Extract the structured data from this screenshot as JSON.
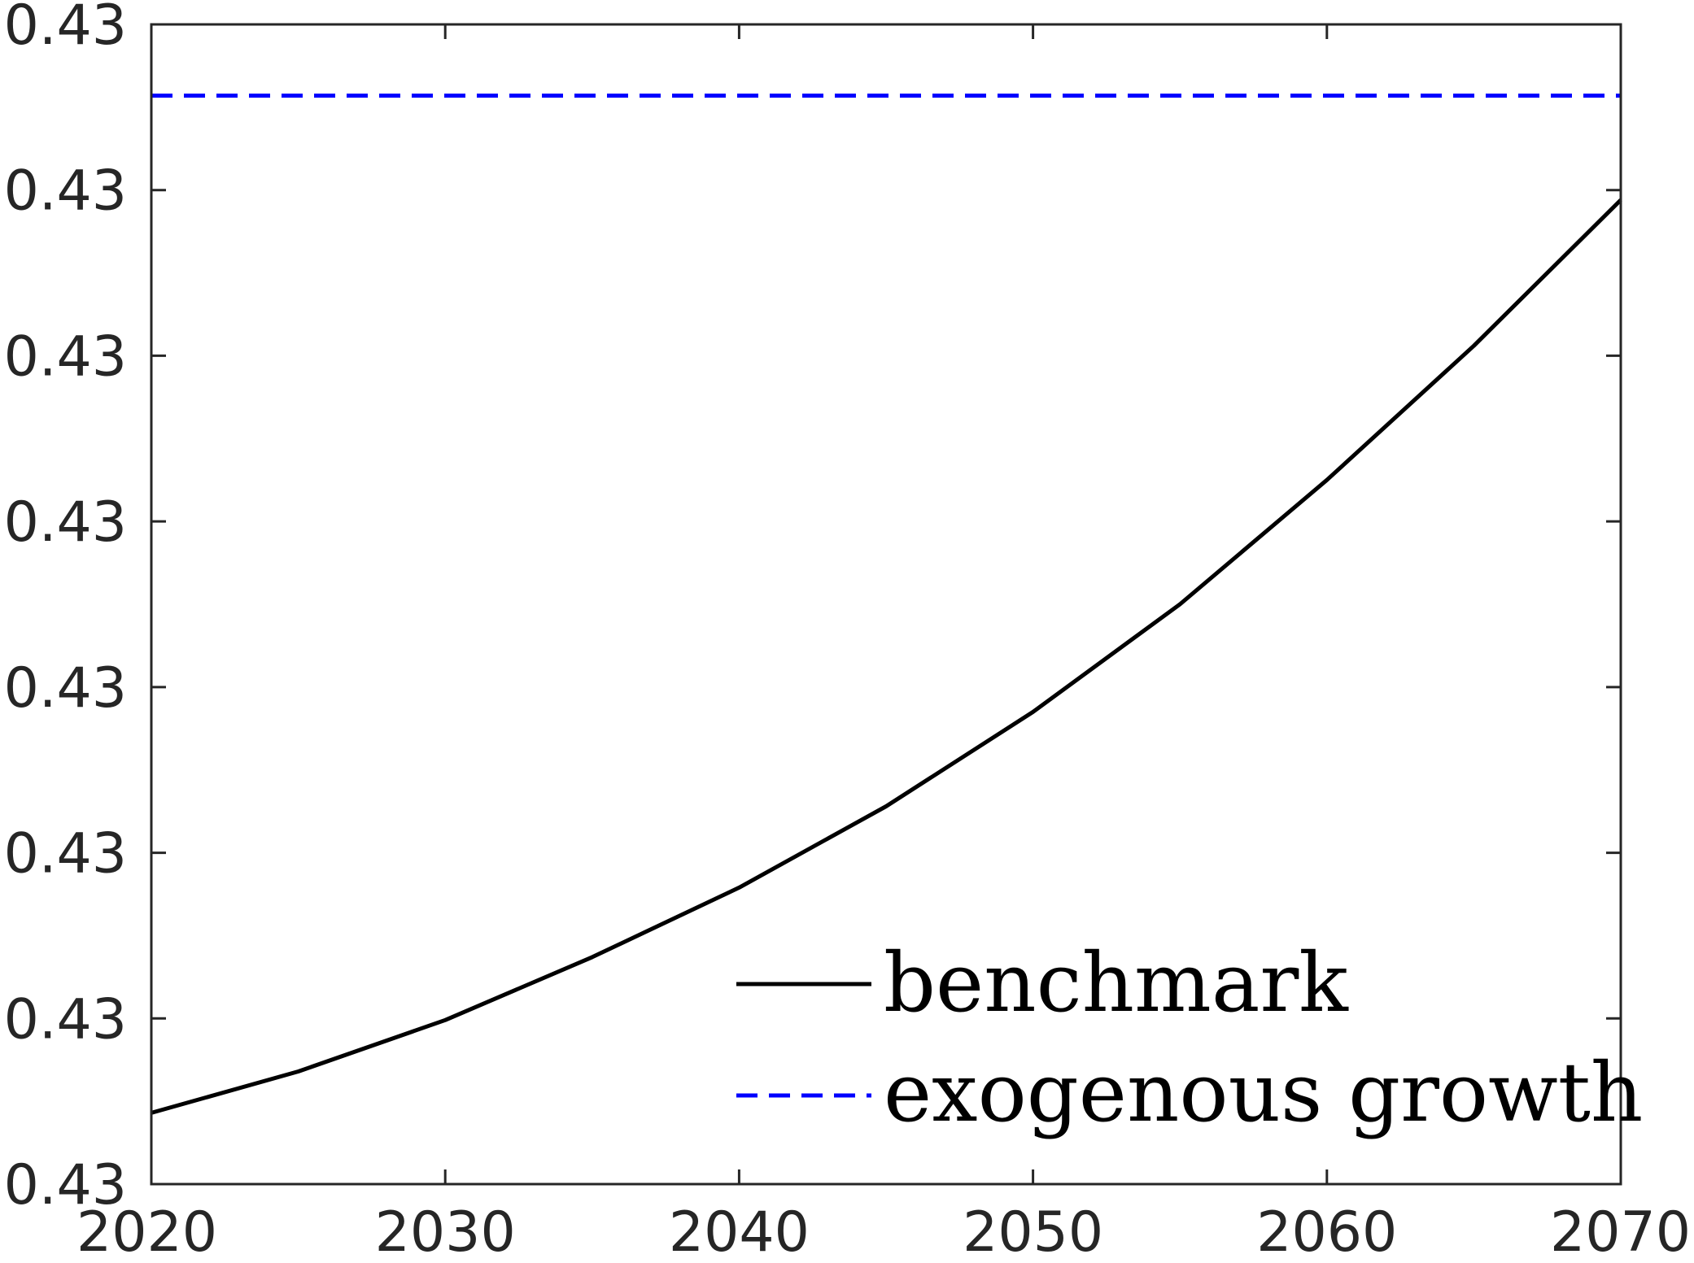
{
  "chart_data": {
    "type": "line",
    "title": "",
    "xlabel": "",
    "ylabel": "",
    "xlim": [
      2020,
      2070
    ],
    "ylim": [
      0,
      7
    ],
    "x_ticks": [
      2020,
      2030,
      2040,
      2050,
      2060,
      2070
    ],
    "x_tick_labels": [
      "2020",
      "2030",
      "2040",
      "2050",
      "2060",
      "2070"
    ],
    "y_ticks": [
      0,
      1,
      2,
      3,
      4,
      5,
      6,
      7
    ],
    "y_tick_labels": [
      "0.43",
      "0.43",
      "0.43",
      "0.43",
      "0.43",
      "0.43",
      "0.43",
      "0.43"
    ],
    "y_tick_note": "all y tick labels print 0.43 (rounded); underlying values differ by tiny increments",
    "grid": false,
    "legend_position": "bottom-right",
    "series": [
      {
        "name": "benchmark",
        "color": "#000000",
        "style": "solid",
        "x": [
          2020,
          2025,
          2030,
          2035,
          2040,
          2045,
          2050,
          2055,
          2060,
          2065,
          2070
        ],
        "y": [
          0.43,
          0.68,
          0.99,
          1.37,
          1.79,
          2.28,
          2.85,
          3.5,
          4.25,
          5.06,
          5.94
        ]
      },
      {
        "name": "exogenous growth",
        "color": "#0000ff",
        "style": "dashed",
        "x": [
          2020,
          2070
        ],
        "y": [
          6.57,
          6.57
        ]
      }
    ]
  }
}
